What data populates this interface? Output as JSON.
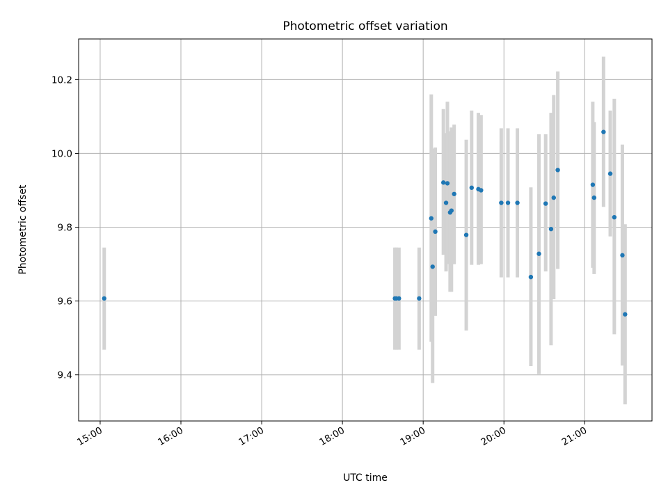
{
  "chart_data": {
    "type": "scatter",
    "title": "Photometric offset variation",
    "xlabel": "UTC time",
    "ylabel": "Photometric offset",
    "x_axis": "time",
    "xlim": [
      "14:44",
      "21:50"
    ],
    "ylim": [
      9.275,
      10.31
    ],
    "x_ticks": [
      "15:00",
      "16:00",
      "17:00",
      "18:00",
      "19:00",
      "20:00",
      "21:00"
    ],
    "y_ticks": [
      9.4,
      9.6,
      9.8,
      10.0,
      10.2
    ],
    "grid": true,
    "legend": "none",
    "colors": {
      "point": "#1f77b4",
      "errorbar": "#d3d3d3",
      "grid": "#b0b0b0"
    },
    "points": [
      {
        "x": "15:03",
        "y": 9.607,
        "err_low": 9.468,
        "err_high": 9.745
      },
      {
        "x": "18:39",
        "y": 9.607,
        "err_low": 9.468,
        "err_high": 9.745
      },
      {
        "x": "18:40",
        "y": 9.607,
        "err_low": 9.468,
        "err_high": 9.745
      },
      {
        "x": "18:42",
        "y": 9.607,
        "err_low": 9.468,
        "err_high": 9.745
      },
      {
        "x": "18:57",
        "y": 9.607,
        "err_low": 9.468,
        "err_high": 9.745
      },
      {
        "x": "19:06",
        "y": 9.824,
        "err_low": 9.49,
        "err_high": 10.16
      },
      {
        "x": "19:07",
        "y": 9.693,
        "err_low": 9.378,
        "err_high": 10.013
      },
      {
        "x": "19:09",
        "y": 9.788,
        "err_low": 9.56,
        "err_high": 10.016
      },
      {
        "x": "19:15",
        "y": 9.921,
        "err_low": 9.725,
        "err_high": 10.12
      },
      {
        "x": "19:17",
        "y": 9.866,
        "err_low": 9.68,
        "err_high": 10.055
      },
      {
        "x": "19:18",
        "y": 9.919,
        "err_low": 9.7,
        "err_high": 10.14
      },
      {
        "x": "19:20",
        "y": 9.84,
        "err_low": 9.625,
        "err_high": 10.06
      },
      {
        "x": "19:21",
        "y": 9.845,
        "err_low": 9.625,
        "err_high": 10.07
      },
      {
        "x": "19:23",
        "y": 9.89,
        "err_low": 9.7,
        "err_high": 10.078
      },
      {
        "x": "19:32",
        "y": 9.779,
        "err_low": 9.52,
        "err_high": 10.037
      },
      {
        "x": "19:36",
        "y": 9.907,
        "err_low": 9.698,
        "err_high": 10.116
      },
      {
        "x": "19:41",
        "y": 9.903,
        "err_low": 9.698,
        "err_high": 10.11
      },
      {
        "x": "19:43",
        "y": 9.9,
        "err_low": 9.7,
        "err_high": 10.104
      },
      {
        "x": "19:58",
        "y": 9.866,
        "err_low": 9.664,
        "err_high": 10.068
      },
      {
        "x": "20:03",
        "y": 9.866,
        "err_low": 9.664,
        "err_high": 10.068
      },
      {
        "x": "20:10",
        "y": 9.866,
        "err_low": 9.664,
        "err_high": 10.068
      },
      {
        "x": "20:20",
        "y": 9.665,
        "err_low": 9.424,
        "err_high": 9.908
      },
      {
        "x": "20:26",
        "y": 9.728,
        "err_low": 9.402,
        "err_high": 10.052
      },
      {
        "x": "20:31",
        "y": 9.864,
        "err_low": 9.68,
        "err_high": 10.052
      },
      {
        "x": "20:35",
        "y": 9.795,
        "err_low": 9.48,
        "err_high": 10.11
      },
      {
        "x": "20:37",
        "y": 9.88,
        "err_low": 9.605,
        "err_high": 10.158
      },
      {
        "x": "20:40",
        "y": 9.955,
        "err_low": 9.687,
        "err_high": 10.222
      },
      {
        "x": "21:06",
        "y": 9.915,
        "err_low": 9.69,
        "err_high": 10.14
      },
      {
        "x": "21:07",
        "y": 9.88,
        "err_low": 9.673,
        "err_high": 10.085
      },
      {
        "x": "21:14",
        "y": 10.058,
        "err_low": 9.855,
        "err_high": 10.262
      },
      {
        "x": "21:19",
        "y": 9.945,
        "err_low": 9.775,
        "err_high": 10.116
      },
      {
        "x": "21:22",
        "y": 9.827,
        "err_low": 9.51,
        "err_high": 10.148
      },
      {
        "x": "21:28",
        "y": 9.724,
        "err_low": 9.425,
        "err_high": 10.024
      },
      {
        "x": "21:30",
        "y": 9.564,
        "err_low": 9.32,
        "err_high": 9.808
      }
    ]
  }
}
